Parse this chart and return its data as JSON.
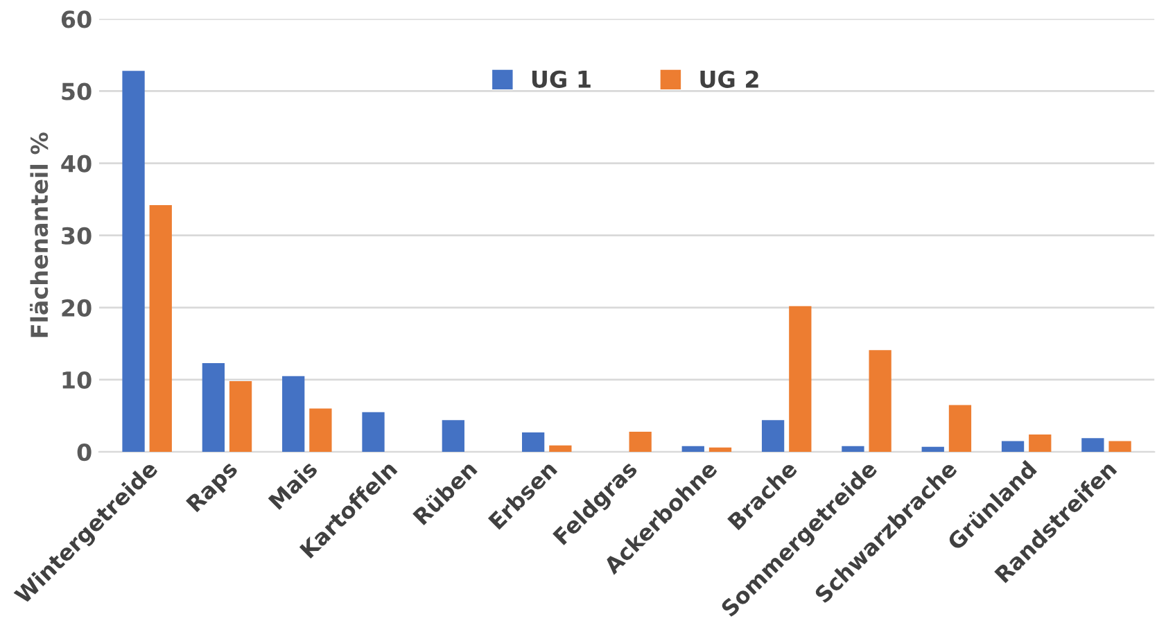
{
  "chart_data": {
    "type": "bar",
    "ylabel": "Flächenanteil %",
    "categories": [
      "Wintergetreide",
      "Raps",
      "Mais",
      "Kartoffeln",
      "Rüben",
      "Erbsen",
      "Feldgras",
      "Ackerbohne",
      "Brache",
      "Sommergetreide",
      "Schwarzbrache",
      "Grünland",
      "Randstreifen"
    ],
    "series": [
      {
        "name": "UG 1",
        "color": "#4472c4",
        "values": [
          52.8,
          12.3,
          10.5,
          5.5,
          4.4,
          2.7,
          0,
          0.8,
          4.4,
          0.8,
          0.7,
          1.5,
          1.9
        ]
      },
      {
        "name": "UG 2",
        "color": "#ed7d31",
        "values": [
          34.2,
          9.8,
          6.0,
          0,
          0,
          0.9,
          2.8,
          0.6,
          20.2,
          14.1,
          6.5,
          2.4,
          1.5
        ]
      }
    ],
    "ylim": [
      0,
      60
    ],
    "yticks": [
      0,
      10,
      20,
      30,
      40,
      50,
      60
    ],
    "grid": "y",
    "legend": "top"
  }
}
